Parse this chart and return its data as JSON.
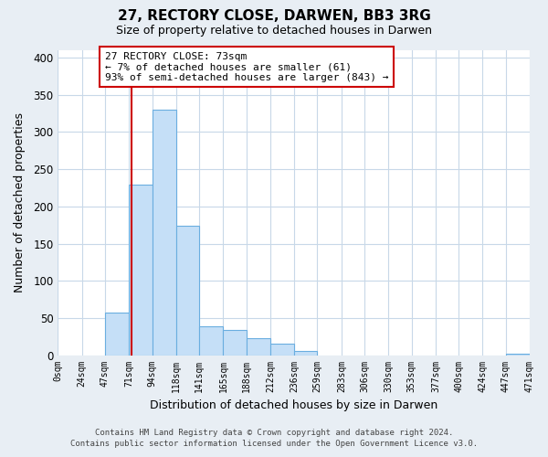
{
  "title": "27, RECTORY CLOSE, DARWEN, BB3 3RG",
  "subtitle": "Size of property relative to detached houses in Darwen",
  "xlabel": "Distribution of detached houses by size in Darwen",
  "ylabel": "Number of detached properties",
  "bin_edges": [
    0,
    24,
    47,
    71,
    94,
    118,
    141,
    165,
    188,
    212,
    236,
    259,
    283,
    306,
    330,
    353,
    377,
    400,
    424,
    447,
    471
  ],
  "bin_counts": [
    0,
    0,
    57,
    229,
    330,
    174,
    39,
    34,
    23,
    15,
    5,
    0,
    0,
    0,
    0,
    0,
    0,
    0,
    0,
    2
  ],
  "bar_color": "#c5dff7",
  "bar_edge_color": "#6aaee0",
  "property_size": 73,
  "property_line_color": "#cc0000",
  "annotation_text": "27 RECTORY CLOSE: 73sqm\n← 7% of detached houses are smaller (61)\n93% of semi-detached houses are larger (843) →",
  "annotation_box_color": "#ffffff",
  "annotation_box_edge_color": "#cc0000",
  "ylim": [
    0,
    410
  ],
  "xlim": [
    0,
    471
  ],
  "background_color": "#e8eef4",
  "plot_background_color": "#ffffff",
  "grid_color": "#c8d8e8",
  "footer_line1": "Contains HM Land Registry data © Crown copyright and database right 2024.",
  "footer_line2": "Contains public sector information licensed under the Open Government Licence v3.0.",
  "tick_labels": [
    "0sqm",
    "24sqm",
    "47sqm",
    "71sqm",
    "94sqm",
    "118sqm",
    "141sqm",
    "165sqm",
    "188sqm",
    "212sqm",
    "236sqm",
    "259sqm",
    "283sqm",
    "306sqm",
    "330sqm",
    "353sqm",
    "377sqm",
    "400sqm",
    "424sqm",
    "447sqm",
    "471sqm"
  ],
  "yticks": [
    0,
    50,
    100,
    150,
    200,
    250,
    300,
    350,
    400
  ]
}
